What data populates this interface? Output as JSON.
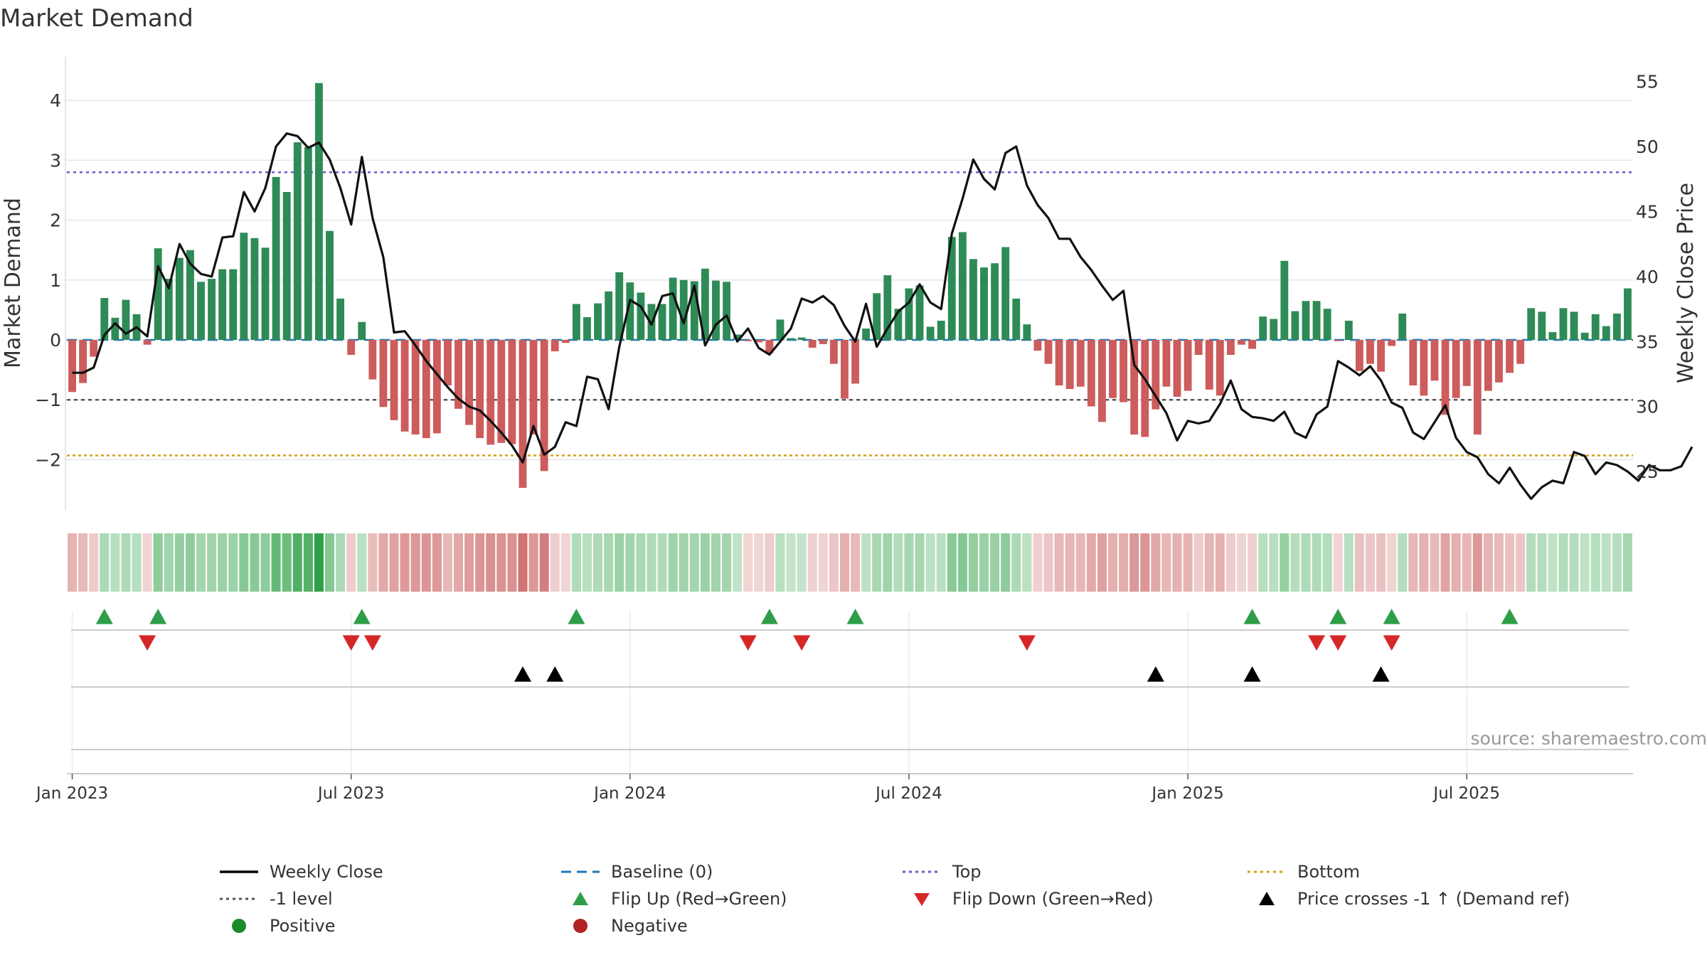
{
  "chart_data": {
    "type": "bar",
    "title": "Market Demand",
    "ylabel": "Market Demand",
    "y2label": "Weekly Close Price",
    "source": "source: sharemaestro.com",
    "ylim": [
      -2.85,
      4.75
    ],
    "y2lim": [
      22.0,
      57.0
    ],
    "yticks": [
      -2,
      -1,
      0,
      1,
      2,
      3,
      4
    ],
    "ytick_labels": [
      "−2",
      "−1",
      "0",
      "1",
      "2",
      "3",
      "4"
    ],
    "y2ticks": [
      25,
      30,
      35,
      40,
      45,
      50,
      55
    ],
    "ytick_labels2": [
      "25",
      "30",
      "35",
      "40",
      "45",
      "50",
      "55"
    ],
    "xticks": [
      0,
      26,
      52,
      78,
      104,
      130
    ],
    "xtick_labels": [
      "Jan 2023",
      "Jul 2023",
      "Jan 2024",
      "Jul 2024",
      "Jan 2025",
      "Jul 2025"
    ],
    "reference_lines": {
      "top": 2.8,
      "minus_one": -1.0,
      "bottom": -1.93,
      "baseline": 0
    },
    "demand": [
      -0.87,
      -0.72,
      -0.28,
      0.7,
      0.37,
      0.67,
      0.43,
      -0.08,
      1.53,
      1.02,
      1.37,
      1.5,
      0.97,
      1.02,
      1.18,
      1.18,
      1.79,
      1.7,
      1.54,
      2.72,
      2.47,
      3.3,
      3.22,
      4.29,
      1.82,
      0.69,
      -0.25,
      0.3,
      -0.66,
      -1.12,
      -1.34,
      -1.53,
      -1.58,
      -1.64,
      -1.56,
      -0.76,
      -1.15,
      -1.42,
      -1.64,
      -1.75,
      -1.72,
      -1.74,
      -2.47,
      -1.58,
      -2.19,
      -0.19,
      -0.05,
      0.6,
      0.38,
      0.61,
      0.81,
      1.13,
      0.96,
      0.79,
      0.6,
      0.6,
      1.04,
      1.0,
      0.98,
      1.19,
      0.99,
      0.97,
      0.09,
      -0.02,
      -0.04,
      -0.22,
      0.34,
      0.03,
      0.04,
      -0.13,
      -0.07,
      -0.4,
      -0.98,
      -0.73,
      0.19,
      0.78,
      1.08,
      0.52,
      0.86,
      0.91,
      0.22,
      0.32,
      1.72,
      1.8,
      1.35,
      1.21,
      1.28,
      1.55,
      0.69,
      0.26,
      -0.18,
      -0.4,
      -0.76,
      -0.82,
      -0.78,
      -1.11,
      -1.37,
      -0.97,
      -1.04,
      -1.58,
      -1.62,
      -1.16,
      -0.78,
      -0.95,
      -0.85,
      -0.25,
      -0.83,
      -0.93,
      -0.25,
      -0.08,
      -0.15,
      0.39,
      0.35,
      1.32,
      0.48,
      0.65,
      0.65,
      0.52,
      -0.02,
      0.32,
      -0.52,
      -0.4,
      -0.53,
      -0.1,
      0.44,
      -0.76,
      -0.93,
      -0.68,
      -1.25,
      -0.97,
      -0.77,
      -1.58,
      -0.85,
      -0.71,
      -0.55,
      -0.4,
      0.53,
      0.47,
      0.13,
      0.53,
      0.47,
      0.12,
      0.43,
      0.23,
      0.44,
      0.86
    ],
    "close": [
      32.6,
      32.6,
      33.0,
      35.5,
      36.4,
      35.6,
      36.1,
      35.4,
      40.8,
      39.1,
      42.5,
      41.0,
      40.2,
      40.0,
      43.0,
      43.1,
      46.5,
      45.0,
      46.8,
      50.0,
      51.0,
      50.8,
      49.9,
      50.3,
      49.0,
      46.8,
      44.0,
      49.2,
      44.5,
      41.5,
      35.7,
      35.8,
      34.7,
      33.5,
      32.5,
      31.5,
      30.6,
      30.0,
      29.7,
      28.9,
      28.0,
      27.0,
      25.7,
      28.5,
      26.3,
      26.9,
      28.8,
      28.5,
      32.3,
      32.1,
      29.8,
      34.6,
      38.2,
      37.7,
      36.3,
      38.5,
      38.7,
      36.4,
      39.3,
      34.7,
      36.3,
      37.0,
      35.0,
      36.0,
      34.5,
      34.0,
      35.0,
      36.0,
      38.3,
      38.0,
      38.5,
      37.8,
      36.2,
      35.0,
      37.9,
      34.6,
      36.0,
      37.3,
      38.0,
      39.4,
      38.0,
      37.5,
      43.3,
      46.0,
      49.0,
      47.5,
      46.7,
      49.5,
      50.0,
      47.0,
      45.5,
      44.5,
      42.9,
      42.9,
      41.5,
      40.5,
      39.3,
      38.2,
      38.9,
      33.2,
      32.1,
      30.8,
      29.5,
      27.4,
      28.9,
      28.7,
      28.9,
      30.2,
      32.0,
      29.8,
      29.2,
      29.1,
      28.9,
      29.6,
      28.0,
      27.6,
      29.4,
      30.0,
      33.5,
      33.0,
      32.4,
      33.1,
      32.0,
      30.3,
      29.9,
      28.0,
      27.5,
      28.8,
      30.1,
      27.6,
      26.5,
      26.1,
      24.8,
      24.1,
      25.3,
      24.0,
      22.9,
      23.8,
      24.3,
      24.1,
      26.5,
      26.2,
      24.8,
      25.7,
      25.5,
      25.0,
      24.3,
      25.5,
      25.1,
      25.1,
      25.4,
      26.9
    ],
    "flip_up_idx": [
      3,
      8,
      27,
      47,
      65,
      73,
      110,
      118,
      123,
      134
    ],
    "flip_down_idx": [
      7,
      26,
      28,
      63,
      68,
      89,
      116,
      118,
      123
    ],
    "price_cross_idx": [
      42,
      45,
      101,
      110,
      122
    ],
    "legend": [
      {
        "label": "Weekly Close",
        "style": "line",
        "color": "#000000"
      },
      {
        "label": "Baseline (0)",
        "style": "dash",
        "color": "#1f77b4"
      },
      {
        "label": "Top",
        "style": "dot",
        "color": "#6a5acd"
      },
      {
        "label": "Bottom",
        "style": "dot",
        "color": "#d4a017"
      },
      {
        "label": "-1 level",
        "style": "dot",
        "color": "#555555"
      },
      {
        "label": "Flip Up (Red→Green)",
        "style": "tri-up",
        "color": "#2e9e48"
      },
      {
        "label": "Flip Down (Green→Red)",
        "style": "tri-down",
        "color": "#d62728"
      },
      {
        "label": "Price crosses -1 ↑ (Demand ref)",
        "style": "tri-up",
        "color": "#000000"
      },
      {
        "label": "Positive",
        "style": "dot-marker",
        "color": "#1d8a2a"
      },
      {
        "label": "Negative",
        "style": "dot-marker",
        "color": "#b22222"
      }
    ]
  },
  "colors": {
    "positive_bar": "#2e8b57",
    "negative_bar": "#cd5c5c",
    "close_line": "#111111",
    "grid": "#e5e5e5",
    "axis_text": "#333333"
  }
}
